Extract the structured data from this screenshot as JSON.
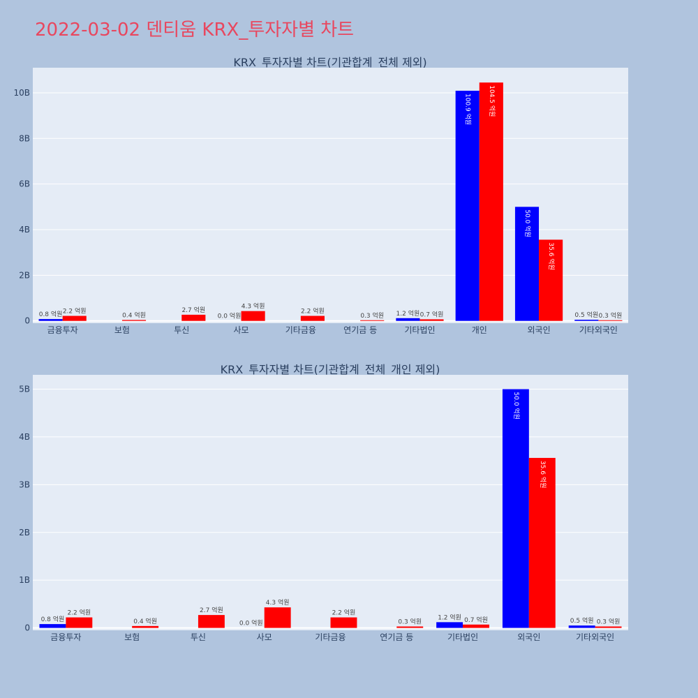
{
  "page": {
    "title": "2022-03-02 덴티움 KRX_투자자별 차트"
  },
  "colors": {
    "background": "#b0c4de",
    "plot_bg": "#e5ecf6",
    "series_buy": "#0000ff",
    "series_sell": "#ff0000",
    "title": "#e8475f",
    "text": "#2a3f5f"
  },
  "chart_data": [
    {
      "type": "bar",
      "title": "KRX_투자자별 차트(기관합계_전체 제외)",
      "categories": [
        "금융투자",
        "보험",
        "투신",
        "사모",
        "기타금융",
        "연기금 등",
        "기타법인",
        "개인",
        "외국인",
        "기타외국인"
      ],
      "series": [
        {
          "color": "#0000ff",
          "values": [
            0.08,
            null,
            null,
            0.0,
            null,
            null,
            0.12,
            10.09,
            5.0,
            0.05
          ],
          "labels": [
            "0.8 억원",
            "",
            "",
            "0.0 억원",
            "",
            "",
            "1.2 억원",
            "100.9 억원",
            "50.0 억원",
            "0.5 억원"
          ]
        },
        {
          "color": "#ff0000",
          "values": [
            0.22,
            0.04,
            0.27,
            0.43,
            0.22,
            0.03,
            0.07,
            10.45,
            3.56,
            0.03
          ],
          "labels": [
            "2.2 억원",
            "0.4 억원",
            "2.7 억원",
            "4.3 억원",
            "2.2 억원",
            "0.3 억원",
            "0.7 억원",
            "104.5 억원",
            "35.6 억원",
            "0.3 억원"
          ]
        }
      ],
      "yticks": [
        0,
        2,
        4,
        6,
        8,
        10
      ],
      "ytick_labels": [
        "0",
        "2B",
        "4B",
        "6B",
        "8B",
        "10B"
      ],
      "ylim": [
        -0.1,
        11.1
      ],
      "grid": true
    },
    {
      "type": "bar",
      "title": "KRX_투자자별 차트(기관합계_전체_개인 제외)",
      "categories": [
        "금융투자",
        "보험",
        "투신",
        "사모",
        "기타금융",
        "연기금 등",
        "기타법인",
        "외국인",
        "기타외국인"
      ],
      "series": [
        {
          "color": "#0000ff",
          "values": [
            0.08,
            null,
            null,
            0.0,
            null,
            null,
            0.12,
            5.0,
            0.05
          ],
          "labels": [
            "0.8 억원",
            "",
            "",
            "0.0 억원",
            "",
            "",
            "1.2 억원",
            "50.0 억원",
            "0.5 억원"
          ]
        },
        {
          "color": "#ff0000",
          "values": [
            0.22,
            0.04,
            0.27,
            0.43,
            0.22,
            0.03,
            0.07,
            3.56,
            0.03
          ],
          "labels": [
            "2.2 억원",
            "0.4 억원",
            "2.7 억원",
            "4.3 억원",
            "2.2 억원",
            "0.3 억원",
            "0.7 억원",
            "35.6 억원",
            "0.3 억원"
          ]
        }
      ],
      "yticks": [
        0,
        1,
        2,
        3,
        4,
        5
      ],
      "ytick_labels": [
        "0",
        "1B",
        "2B",
        "3B",
        "4B",
        "5B"
      ],
      "ylim": [
        -0.05,
        5.3
      ],
      "grid": true
    }
  ]
}
